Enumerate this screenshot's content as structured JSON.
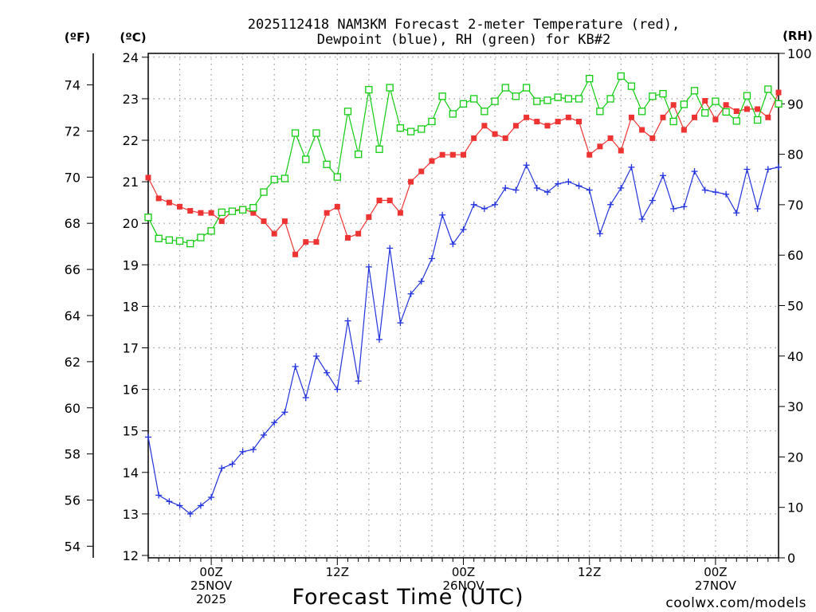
{
  "title_line1": "2025112418 NAM3KM Forecast 2-meter Temperature (red),",
  "title_line2": "Dewpoint (blue), RH (green) for KB#2",
  "unit_f": "(ºF)",
  "unit_c": "(ºC)",
  "unit_rh": "(RH)",
  "xlabel": "Forecast Time (UTC)",
  "credit": "coolwx.com/models",
  "colors": {
    "temperature": "#ee3333",
    "dewpoint": "#2233dd",
    "rh": "#11cc11",
    "grid": "#999999",
    "credit": "#dd2222"
  },
  "chart_data": {
    "type": "line",
    "grid": true,
    "x": {
      "unit": "forecast hour from 2025-11-24 18Z",
      "range": [
        0,
        60
      ],
      "step": 1
    },
    "x_ticks": [
      {
        "hour": 6,
        "label": "00Z",
        "label2": "25NOV",
        "label3": "2025"
      },
      {
        "hour": 18,
        "label": "12Z",
        "label2": "",
        "label3": ""
      },
      {
        "hour": 30,
        "label": "00Z",
        "label2": "26NOV",
        "label3": ""
      },
      {
        "hour": 42,
        "label": "12Z",
        "label2": "",
        "label3": ""
      },
      {
        "hour": 54,
        "label": "00Z",
        "label2": "27NOV",
        "label3": ""
      }
    ],
    "y_left_c": {
      "range": [
        12,
        24.3
      ],
      "ticks": [
        12,
        13,
        14,
        15,
        16,
        17,
        18,
        19,
        20,
        21,
        22,
        23,
        24
      ]
    },
    "y_left_f": {
      "ticks": [
        54,
        56,
        58,
        60,
        62,
        64,
        66,
        68,
        70,
        72,
        74
      ]
    },
    "y_right_rh": {
      "range": [
        0,
        100
      ],
      "ticks": [
        0,
        10,
        20,
        30,
        40,
        50,
        60,
        70,
        80,
        90,
        100
      ]
    },
    "series": [
      {
        "name": "Temperature",
        "axis": "c",
        "marker": "filled-square",
        "values": [
          21.1,
          20.6,
          20.5,
          20.4,
          20.3,
          20.25,
          20.25,
          20.05,
          20.3,
          20.35,
          20.25,
          20.05,
          19.75,
          20.05,
          19.25,
          19.55,
          19.55,
          20.25,
          20.4,
          19.65,
          19.75,
          20.15,
          20.55,
          20.55,
          20.25,
          21.0,
          21.25,
          21.5,
          21.65,
          21.65,
          21.65,
          22.05,
          22.35,
          22.15,
          22.05,
          22.35,
          22.55,
          22.45,
          22.35,
          22.45,
          22.55,
          22.45,
          21.65,
          21.85,
          22.05,
          21.75,
          22.55,
          22.25,
          22.05,
          22.55,
          22.85,
          22.25,
          22.55,
          22.95,
          22.5,
          22.85,
          22.7,
          22.75,
          22.75,
          22.55,
          23.15
        ]
      },
      {
        "name": "Dewpoint",
        "axis": "c",
        "marker": "plus",
        "values": [
          14.85,
          13.45,
          13.3,
          13.2,
          13.0,
          13.2,
          13.4,
          14.1,
          14.2,
          14.5,
          14.55,
          14.9,
          15.2,
          15.45,
          16.55,
          15.8,
          16.8,
          16.4,
          16.0,
          17.65,
          16.2,
          18.95,
          17.2,
          19.4,
          17.6,
          18.3,
          18.6,
          19.15,
          20.2,
          19.5,
          19.85,
          20.45,
          20.35,
          20.45,
          20.85,
          20.8,
          21.4,
          20.85,
          20.75,
          20.95,
          21.0,
          20.9,
          20.8,
          19.75,
          20.45,
          20.85,
          21.35,
          20.1,
          20.55,
          21.15,
          20.35,
          20.4,
          21.25,
          20.8,
          20.75,
          20.7,
          20.25,
          21.3,
          20.35,
          21.3,
          21.35
        ]
      },
      {
        "name": "RH",
        "axis": "rh",
        "marker": "open-square",
        "values": [
          67.5,
          63.3,
          63.0,
          62.8,
          62.3,
          63.5,
          64.8,
          68.5,
          68.7,
          69.0,
          69.4,
          72.5,
          75.0,
          75.2,
          84.2,
          79.0,
          84.2,
          78.0,
          75.5,
          88.5,
          80.0,
          92.8,
          81.0,
          93.2,
          85.2,
          84.5,
          85.0,
          86.5,
          91.5,
          88.0,
          90.0,
          91.0,
          88.5,
          90.5,
          93.2,
          91.5,
          93.2,
          90.5,
          90.7,
          91.3,
          91.0,
          91.0,
          95.0,
          88.5,
          91.0,
          95.5,
          93.5,
          88.5,
          91.5,
          92.0,
          86.5,
          89.9,
          92.6,
          88.2,
          90.5,
          88.4,
          86.6,
          91.6,
          86.8,
          92.9,
          90.0
        ]
      }
    ]
  }
}
